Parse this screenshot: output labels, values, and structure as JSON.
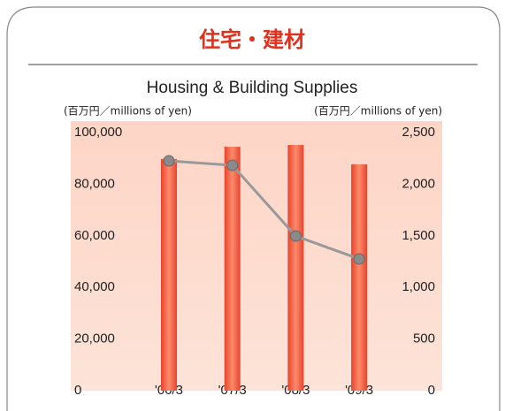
{
  "chart_data": {
    "type": "bar_line",
    "title": "住宅・建材",
    "subtitle": "Housing & Building Supplies",
    "y_label": "(百万円／millions of yen)",
    "y2_label": "(百万円／millions of yen)",
    "categories": [
      "'06/3",
      "'07/3",
      "'08/3",
      "'09/3"
    ],
    "series": [
      {
        "type": "bar",
        "color": "#f0624a",
        "values": [
          89700,
          94500,
          95200,
          87700
        ]
      },
      {
        "type": "line",
        "axis": "y2",
        "color": "#999999",
        "values": [
          2226,
          2183,
          1498,
          1276
        ]
      }
    ],
    "ylim": [
      0,
      100000
    ],
    "yticks": [
      0,
      {
        "value": 20000,
        "label": "20,000"
      },
      {
        "value": 40000,
        "label": "40,000"
      },
      {
        "value": 60000,
        "label": "60,000"
      },
      {
        "value": 80000,
        "label": "80,000"
      },
      {
        "value": 100000,
        "label": "100,000"
      }
    ],
    "y2lim": [
      0,
      2500
    ],
    "y2ticks": [
      0,
      500,
      {
        "value": 1000,
        "label": "1,000"
      },
      {
        "value": 1500,
        "label": "1,500"
      },
      {
        "value": 2000,
        "label": "2,000"
      },
      {
        "value": 2500,
        "label": "2,500"
      }
    ]
  }
}
